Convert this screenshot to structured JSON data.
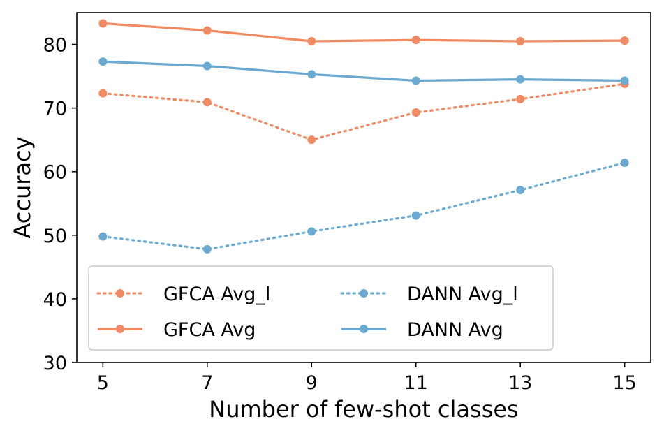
{
  "chart_data": {
    "type": "line",
    "title": "",
    "xlabel": "Number of few-shot classes",
    "ylabel": "Accuracy",
    "x": [
      5,
      7,
      9,
      11,
      13,
      15
    ],
    "x_tick_labels": [
      "5",
      "7",
      "9",
      "11",
      "13",
      "15"
    ],
    "y_tick_values": [
      30,
      40,
      50,
      60,
      70,
      80
    ],
    "y_tick_labels": [
      "30",
      "40",
      "50",
      "60",
      "70",
      "80"
    ],
    "xlim": [
      4.5,
      15.5
    ],
    "ylim": [
      30,
      85
    ],
    "grid": false,
    "legend_position": "lower-left",
    "series": [
      {
        "name": "GFCA Avg_l",
        "color": "#F08A63",
        "style": "dotted",
        "values": [
          72.3,
          70.9,
          65.0,
          69.3,
          71.4,
          73.8
        ]
      },
      {
        "name": "GFCA Avg",
        "color": "#F08A63",
        "style": "solid",
        "values": [
          83.3,
          82.2,
          80.5,
          80.7,
          80.5,
          80.6
        ]
      },
      {
        "name": "DANN Avg_l",
        "color": "#6AAAD1",
        "style": "dotted",
        "values": [
          49.8,
          47.8,
          50.6,
          53.1,
          57.1,
          61.4
        ]
      },
      {
        "name": "DANN Avg",
        "color": "#6AAAD1",
        "style": "solid",
        "values": [
          77.3,
          76.6,
          75.3,
          74.3,
          74.5,
          74.3
        ]
      }
    ]
  }
}
